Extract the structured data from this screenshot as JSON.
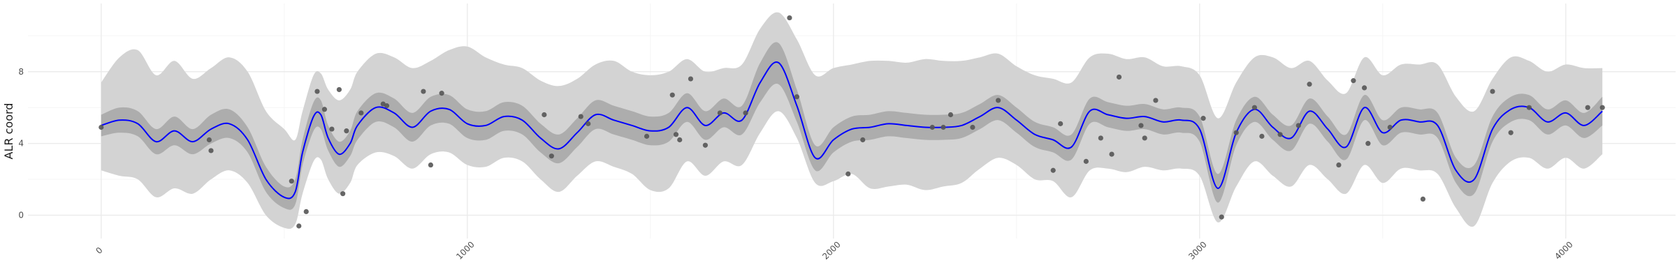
{
  "chart_data": {
    "type": "line",
    "title": "",
    "xlabel": "",
    "ylabel": "ALR coord",
    "xlim": [
      -200,
      4300
    ],
    "ylim": [
      -1.3,
      11.8
    ],
    "x_ticks": [
      0,
      1000,
      2000,
      3000,
      4000
    ],
    "x_tick_labels": [
      "0",
      "1000",
      "2000",
      "3000",
      "4000"
    ],
    "y_ticks": [
      0,
      4,
      8
    ],
    "y_tick_labels": [
      "0",
      "4",
      "8"
    ],
    "grid": true,
    "legend": "none",
    "colors": {
      "mean_line": "#0000ff",
      "inner_band": "#adadad",
      "outer_band": "#d3d3d3",
      "points": "#555555",
      "grid_major": "#ebebeb",
      "grid_minor": "#f5f5f5"
    },
    "mean": {
      "x": [
        0,
        50,
        100,
        150,
        200,
        250,
        300,
        350,
        400,
        450,
        500,
        530,
        550,
        580,
        600,
        620,
        650,
        680,
        700,
        750,
        800,
        850,
        900,
        950,
        1000,
        1050,
        1100,
        1150,
        1200,
        1250,
        1300,
        1350,
        1400,
        1450,
        1500,
        1550,
        1600,
        1650,
        1700,
        1750,
        1800,
        1850,
        1900,
        1950,
        2000,
        2050,
        2100,
        2150,
        2200,
        2250,
        2300,
        2350,
        2400,
        2450,
        2500,
        2550,
        2600,
        2650,
        2700,
        2750,
        2800,
        2850,
        2900,
        2950,
        3000,
        3050,
        3100,
        3150,
        3200,
        3250,
        3300,
        3350,
        3400,
        3450,
        3500,
        3550,
        3600,
        3650,
        3700,
        3750,
        3800,
        3850,
        3900,
        3950,
        4000,
        4050,
        4100
      ],
      "y": [
        5.0,
        5.3,
        5.1,
        4.1,
        4.7,
        4.1,
        4.8,
        5.1,
        4.2,
        2.0,
        1.0,
        1.3,
        3.5,
        5.5,
        5.6,
        4.3,
        3.4,
        4.0,
        5.0,
        6.0,
        5.7,
        4.9,
        5.8,
        5.9,
        5.1,
        5.0,
        5.5,
        5.3,
        4.3,
        3.7,
        4.6,
        5.6,
        5.3,
        5.0,
        4.7,
        4.9,
        6.0,
        5.0,
        5.7,
        5.3,
        7.4,
        8.5,
        6.1,
        3.2,
        4.2,
        4.8,
        4.9,
        5.1,
        5.0,
        4.9,
        4.9,
        5.0,
        5.5,
        6.0,
        5.3,
        4.5,
        4.2,
        3.8,
        5.8,
        5.6,
        5.4,
        5.5,
        5.2,
        5.3,
        4.8,
        1.5,
        4.6,
        5.9,
        4.9,
        4.3,
        5.8,
        4.8,
        3.8,
        6.0,
        4.6,
        5.3,
        5.2,
        5.0,
        2.5,
        2.0,
        4.8,
        5.9,
        6.0,
        5.2,
        5.7,
        5.0,
        5.8
      ]
    },
    "inner_band": {
      "lower": [
        4.4,
        4.6,
        4.4,
        3.4,
        3.9,
        3.4,
        4.0,
        4.3,
        3.5,
        1.3,
        0.4,
        0.6,
        2.8,
        4.7,
        4.8,
        3.6,
        2.7,
        3.3,
        4.2,
        5.2,
        4.9,
        4.1,
        5.0,
        5.1,
        4.3,
        4.2,
        4.7,
        4.5,
        3.5,
        2.9,
        3.8,
        4.8,
        4.5,
        4.2,
        3.9,
        4.1,
        5.2,
        4.2,
        4.9,
        4.5,
        6.3,
        7.3,
        5.2,
        2.5,
        3.5,
        4.1,
        4.2,
        4.4,
        4.3,
        4.2,
        4.2,
        4.3,
        4.8,
        5.3,
        4.6,
        3.8,
        3.5,
        3.1,
        5.1,
        4.9,
        4.7,
        4.8,
        4.5,
        4.6,
        4.1,
        0.7,
        3.9,
        5.2,
        4.2,
        3.6,
        5.1,
        4.1,
        3.1,
        5.3,
        3.9,
        4.6,
        4.5,
        4.3,
        1.8,
        1.2,
        4.1,
        5.2,
        5.3,
        4.5,
        5.0,
        4.3,
        5.0
      ],
      "upper": [
        5.6,
        6.0,
        5.8,
        4.8,
        5.5,
        4.8,
        5.6,
        5.9,
        4.9,
        2.7,
        1.6,
        2.0,
        4.2,
        6.3,
        6.4,
        5.0,
        4.1,
        4.7,
        5.8,
        6.8,
        6.5,
        5.7,
        6.6,
        6.7,
        5.9,
        5.8,
        6.3,
        6.1,
        5.1,
        4.5,
        5.4,
        6.4,
        6.1,
        5.8,
        5.5,
        5.7,
        6.8,
        5.8,
        6.5,
        6.1,
        8.5,
        9.6,
        7.0,
        3.9,
        4.9,
        5.5,
        5.6,
        5.8,
        5.7,
        5.6,
        5.6,
        5.7,
        6.2,
        6.7,
        6.0,
        5.2,
        4.9,
        4.5,
        6.5,
        6.3,
        6.1,
        6.2,
        5.9,
        6.0,
        5.5,
        2.3,
        5.3,
        6.6,
        5.6,
        5.0,
        6.5,
        5.5,
        4.5,
        6.7,
        5.3,
        6.0,
        5.9,
        5.7,
        3.2,
        2.8,
        5.5,
        6.6,
        6.7,
        5.9,
        6.4,
        5.7,
        6.6
      ]
    },
    "outer_band": {
      "lower": [
        2.5,
        2.2,
        2.0,
        1.0,
        1.5,
        1.2,
        2.0,
        2.5,
        1.8,
        0.0,
        -0.7,
        -0.5,
        1.2,
        3.0,
        3.1,
        2.0,
        1.2,
        1.8,
        2.8,
        3.5,
        3.3,
        2.6,
        3.4,
        3.5,
        2.8,
        2.7,
        3.2,
        3.0,
        2.0,
        1.3,
        2.2,
        3.0,
        2.7,
        2.3,
        1.4,
        1.5,
        3.0,
        2.2,
        3.0,
        2.8,
        4.6,
        5.8,
        4.3,
        1.8,
        1.9,
        2.3,
        1.5,
        1.6,
        1.7,
        1.4,
        1.6,
        1.8,
        2.6,
        3.2,
        2.8,
        2.0,
        1.9,
        1.0,
        2.5,
        2.6,
        2.4,
        2.7,
        2.5,
        2.6,
        2.2,
        -0.4,
        1.6,
        3.0,
        2.2,
        1.6,
        2.8,
        2.0,
        1.2,
        2.8,
        1.8,
        2.6,
        2.5,
        2.3,
        0.4,
        -0.6,
        1.8,
        3.0,
        3.2,
        2.6,
        3.2,
        2.6,
        3.4
      ],
      "upper": [
        7.4,
        8.8,
        9.2,
        7.8,
        8.6,
        7.6,
        8.2,
        8.8,
        8.0,
        5.8,
        4.8,
        4.2,
        5.8,
        7.8,
        7.9,
        7.0,
        6.4,
        7.0,
        8.0,
        9.0,
        8.8,
        8.2,
        8.6,
        9.2,
        9.4,
        8.8,
        8.4,
        8.2,
        7.5,
        7.2,
        7.6,
        8.4,
        8.6,
        8.0,
        7.8,
        8.0,
        8.7,
        8.0,
        8.2,
        8.4,
        10.4,
        11.3,
        9.8,
        7.8,
        8.2,
        8.4,
        8.6,
        8.6,
        8.5,
        8.7,
        8.6,
        8.6,
        8.8,
        9.0,
        8.3,
        7.8,
        7.6,
        7.4,
        8.8,
        9.0,
        8.7,
        8.8,
        8.3,
        8.3,
        7.8,
        5.4,
        7.4,
        8.8,
        8.8,
        8.2,
        8.6,
        7.5,
        6.8,
        8.8,
        7.8,
        8.4,
        8.4,
        8.4,
        6.6,
        5.8,
        7.6,
        8.8,
        8.6,
        8.0,
        8.4,
        8.2,
        8.2
      ]
    },
    "points": {
      "x": [
        0,
        295,
        300,
        520,
        540,
        560,
        590,
        610,
        630,
        650,
        660,
        670,
        710,
        770,
        780,
        880,
        900,
        930,
        1210,
        1230,
        1310,
        1330,
        1490,
        1560,
        1570,
        1580,
        1610,
        1650,
        1690,
        1760,
        1880,
        1900,
        2040,
        2080,
        2270,
        2300,
        2320,
        2380,
        2450,
        2600,
        2620,
        2690,
        2730,
        2760,
        2780,
        2840,
        2850,
        2880,
        3010,
        3060,
        3100,
        3150,
        3170,
        3220,
        3270,
        3300,
        3380,
        3420,
        3450,
        3460,
        3520,
        3610,
        3800,
        3850,
        3900,
        4060,
        4100
      ],
      "y": [
        4.9,
        4.2,
        3.6,
        1.9,
        -0.6,
        0.2,
        6.9,
        5.9,
        4.8,
        7.0,
        1.2,
        4.7,
        5.7,
        6.2,
        6.1,
        6.9,
        2.8,
        6.8,
        5.6,
        3.3,
        5.5,
        5.1,
        4.4,
        6.7,
        4.5,
        4.2,
        7.6,
        3.9,
        5.7,
        5.7,
        11.0,
        6.6,
        2.3,
        4.2,
        4.9,
        4.9,
        5.6,
        4.9,
        6.4,
        2.5,
        5.1,
        3.0,
        4.3,
        3.4,
        7.7,
        5.0,
        4.3,
        6.4,
        5.4,
        -0.1,
        4.6,
        6.0,
        4.4,
        4.5,
        5.0,
        7.3,
        2.8,
        7.5,
        7.1,
        4.0,
        4.9,
        0.9,
        6.9,
        4.6,
        6.0,
        6.0,
        6.0
      ]
    }
  }
}
